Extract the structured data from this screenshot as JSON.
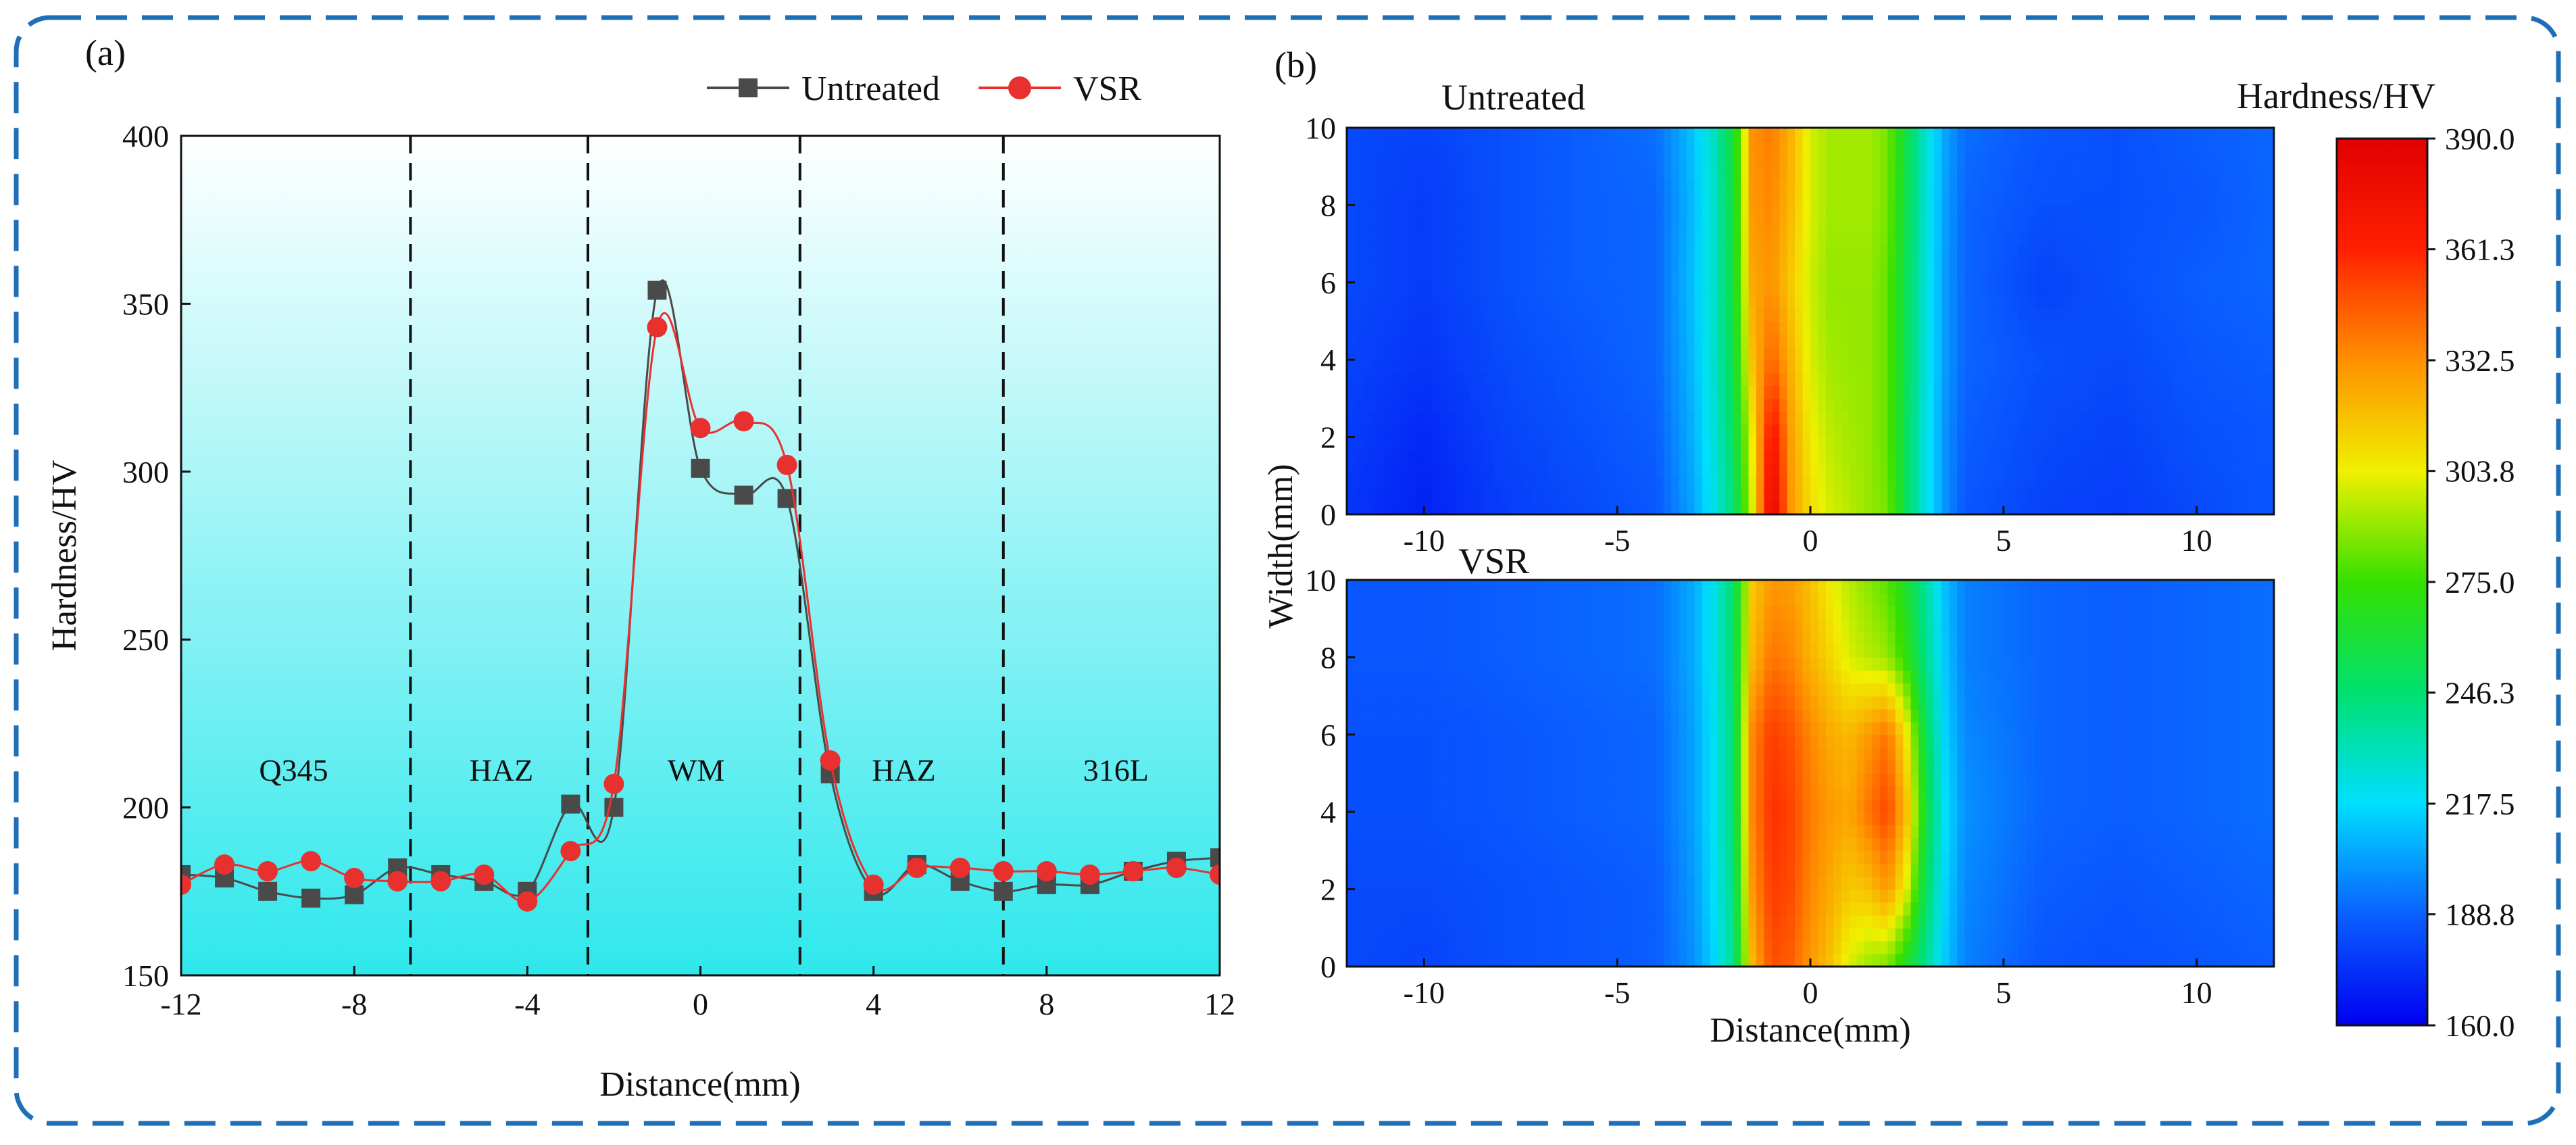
{
  "panel_a_label": "(a)",
  "panel_b_label": "(b)",
  "colors": {
    "frame": "#1f6fb8",
    "untreated": "#4a4a4a",
    "vsr": "#e8312f",
    "bg_top": "#ffffff",
    "bg_bottom": "#2ee8ec"
  },
  "chart_data": [
    {
      "type": "line",
      "title": "",
      "xlabel": "Distance(mm)",
      "ylabel": "Hardness/HV",
      "xlim": [
        -12,
        12
      ],
      "ylim": [
        150,
        400
      ],
      "xticks": [
        -12,
        -8,
        -4,
        0,
        4,
        8,
        12
      ],
      "xtick_labels": [
        "-12",
        "-8",
        "-4",
        "0",
        "4",
        "8",
        "12"
      ],
      "yticks": [
        150,
        200,
        250,
        300,
        350,
        400
      ],
      "ytick_labels": [
        "150",
        "200",
        "250",
        "300",
        "350",
        "400"
      ],
      "legend_position": "top-right",
      "zone_boundaries": [
        -6.7,
        -2.6,
        2.3,
        7.0
      ],
      "regions": [
        {
          "label": "Q345",
          "x": -9.4
        },
        {
          "label": "HAZ",
          "x": -4.6
        },
        {
          "label": "WM",
          "x": -0.1
        },
        {
          "label": "HAZ",
          "x": 4.7
        },
        {
          "label": "316L",
          "x": 9.6
        }
      ],
      "series": [
        {
          "name": "Untreated",
          "marker": "square",
          "x": [
            -12,
            -11,
            -10,
            -9,
            -8,
            -7,
            -6,
            -5,
            -4,
            -3,
            -2,
            -1,
            0,
            1,
            2,
            3,
            4,
            5,
            6,
            7,
            8,
            9,
            10,
            11,
            12
          ],
          "values": [
            180,
            179,
            175,
            173,
            174,
            182,
            180,
            178,
            175,
            201,
            200,
            354,
            301,
            293,
            292,
            210,
            175,
            183,
            178,
            175,
            177,
            177,
            181,
            184,
            185
          ]
        },
        {
          "name": "VSR",
          "marker": "circle",
          "x": [
            -12,
            -11,
            -10,
            -9,
            -8,
            -7,
            -6,
            -5,
            -4,
            -3,
            -2,
            -1,
            0,
            1,
            2,
            3,
            4,
            5,
            6,
            7,
            8,
            9,
            10,
            11,
            12
          ],
          "values": [
            177,
            183,
            181,
            184,
            179,
            178,
            178,
            180,
            172,
            187,
            207,
            343,
            313,
            315,
            302,
            214,
            177,
            182,
            182,
            181,
            181,
            180,
            181,
            182,
            180
          ]
        }
      ]
    },
    {
      "type": "heatmap",
      "title": "Untreated",
      "xlabel": "Distance(mm)",
      "ylabel": "Width(mm)",
      "xlim": [
        -12,
        12
      ],
      "ylim": [
        0,
        10
      ],
      "xticks": [
        -10,
        -5,
        0,
        5,
        10
      ],
      "xtick_labels": [
        "-10",
        "-5",
        "0",
        "5",
        "10"
      ],
      "yticks": [
        0,
        2,
        4,
        6,
        8,
        10
      ],
      "ytick_labels": [
        "0",
        "2",
        "4",
        "6",
        "8",
        "10"
      ],
      "x": [
        -12,
        -10,
        -8,
        -6,
        -4,
        -3,
        -2.5,
        -2,
        -1.5,
        -1,
        -0.5,
        0,
        0.5,
        1,
        1.5,
        2,
        2.5,
        3,
        3.5,
        4,
        6,
        8,
        10,
        12
      ],
      "y": [
        0,
        2,
        4,
        6,
        8,
        10
      ],
      "z": [
        [
          176,
          170,
          178,
          182,
          186,
          205,
          222,
          245,
          300,
          388,
          330,
          310,
          300,
          295,
          290,
          285,
          250,
          222,
          200,
          186,
          180,
          178,
          182,
          186
        ],
        [
          178,
          172,
          180,
          184,
          188,
          208,
          225,
          250,
          305,
          372,
          328,
          305,
          296,
          292,
          290,
          282,
          250,
          222,
          200,
          188,
          182,
          180,
          184,
          186
        ],
        [
          180,
          176,
          182,
          186,
          190,
          210,
          228,
          255,
          318,
          345,
          322,
          300,
          292,
          290,
          290,
          282,
          252,
          224,
          202,
          190,
          184,
          182,
          186,
          188
        ],
        [
          182,
          178,
          184,
          188,
          190,
          212,
          228,
          258,
          325,
          332,
          315,
          298,
          290,
          290,
          290,
          282,
          252,
          224,
          202,
          190,
          180,
          184,
          188,
          190
        ],
        [
          182,
          178,
          184,
          188,
          190,
          210,
          228,
          258,
          330,
          335,
          320,
          300,
          292,
          292,
          292,
          285,
          254,
          225,
          203,
          190,
          184,
          184,
          186,
          190
        ],
        [
          182,
          180,
          184,
          188,
          192,
          212,
          230,
          260,
          332,
          338,
          322,
          300,
          292,
          292,
          292,
          285,
          255,
          226,
          204,
          192,
          186,
          184,
          188,
          190
        ]
      ]
    },
    {
      "type": "heatmap",
      "title": "VSR",
      "xlabel": "Distance(mm)",
      "ylabel": "Width(mm)",
      "xlim": [
        -12,
        12
      ],
      "ylim": [
        0,
        10
      ],
      "xticks": [
        -10,
        -5,
        0,
        5,
        10
      ],
      "xtick_labels": [
        "-10",
        "-5",
        "0",
        "5",
        "10"
      ],
      "yticks": [
        0,
        2,
        4,
        6,
        8,
        10
      ],
      "ytick_labels": [
        "0",
        "2",
        "4",
        "6",
        "8",
        "10"
      ],
      "x": [
        -12,
        -10,
        -8,
        -6,
        -4,
        -3,
        -2.5,
        -2,
        -1.5,
        -1,
        -0.5,
        0,
        0.5,
        1,
        1.5,
        2,
        2.5,
        3,
        3.5,
        4,
        6,
        8,
        10,
        12
      ],
      "y": [
        0,
        2,
        4,
        6,
        8,
        10
      ],
      "z": [
        [
          182,
          180,
          184,
          186,
          188,
          200,
          215,
          240,
          320,
          350,
          345,
          330,
          318,
          300,
          290,
          285,
          262,
          238,
          212,
          196,
          186,
          184,
          186,
          188
        ],
        [
          182,
          182,
          184,
          186,
          188,
          202,
          218,
          242,
          330,
          355,
          350,
          335,
          325,
          315,
          318,
          330,
          300,
          250,
          215,
          198,
          188,
          186,
          188,
          190
        ],
        [
          184,
          184,
          186,
          188,
          190,
          204,
          220,
          245,
          335,
          358,
          352,
          338,
          330,
          325,
          340,
          352,
          318,
          258,
          218,
          200,
          190,
          188,
          190,
          192
        ],
        [
          184,
          184,
          186,
          188,
          190,
          204,
          220,
          245,
          335,
          355,
          348,
          335,
          325,
          320,
          330,
          340,
          305,
          252,
          215,
          198,
          190,
          188,
          190,
          192
        ],
        [
          186,
          186,
          188,
          190,
          192,
          206,
          222,
          248,
          320,
          340,
          335,
          322,
          312,
          300,
          295,
          290,
          270,
          240,
          212,
          196,
          190,
          188,
          190,
          192
        ],
        [
          186,
          186,
          188,
          190,
          192,
          206,
          222,
          248,
          315,
          330,
          328,
          318,
          305,
          295,
          288,
          280,
          262,
          236,
          210,
          196,
          190,
          188,
          190,
          192
        ]
      ]
    }
  ],
  "colorbar": {
    "title": "Hardness/HV",
    "min": 160.0,
    "max": 390.0,
    "tick_labels": [
      "390.0",
      "361.3",
      "332.5",
      "303.8",
      "275.0",
      "246.3",
      "217.5",
      "188.8",
      "160.0"
    ],
    "tick_values": [
      390.0,
      361.3,
      332.5,
      303.8,
      275.0,
      246.3,
      217.5,
      188.8,
      160.0
    ],
    "stops": [
      "#0000f0",
      "#0a60ff",
      "#00dfff",
      "#00e070",
      "#35e000",
      "#f0f000",
      "#ff9000",
      "#ff2000",
      "#e00000"
    ]
  }
}
